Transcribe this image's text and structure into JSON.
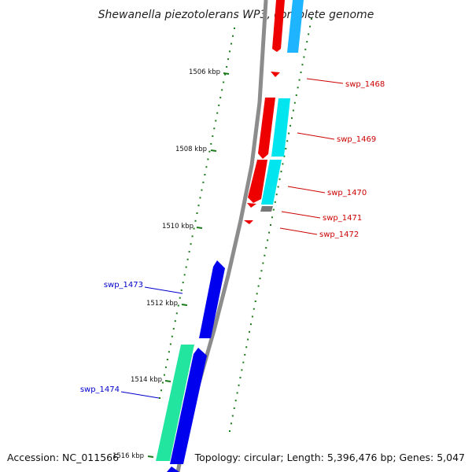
{
  "title": "Shewanella piezotolerans WP3, complete genome",
  "footer": {
    "accession": "Accession: NC_011566",
    "topology": "Topology: circular; Length: 5,396,476 bp; Genes: 5,047"
  },
  "colors": {
    "backbone": "#8c8c8c",
    "tick": "#1a7a1a",
    "label_forward": "#cc0000",
    "label_reverse": "#0000cc",
    "red": "#ee0000",
    "cyan": "#00e5ee",
    "sky": "#1eb4ff",
    "blue": "#0000ee",
    "green": "#22e6a0",
    "gray": "#777777"
  },
  "scale": {
    "tick_labels": [
      "1506 kbp",
      "1508 kbp",
      "1510 kbp",
      "1512 kbp",
      "1514 kbp",
      "1516 kbp"
    ]
  },
  "genes": {
    "labeled": [
      {
        "label": "swp_1468",
        "strand": "forward"
      },
      {
        "label": "swp_1469",
        "strand": "forward"
      },
      {
        "label": "swp_1470",
        "strand": "forward"
      },
      {
        "label": "swp_1471",
        "strand": "forward"
      },
      {
        "label": "swp_1472",
        "strand": "forward"
      },
      {
        "label": "swp_1473",
        "strand": "reverse"
      },
      {
        "label": "swp_1474",
        "strand": "reverse"
      }
    ]
  }
}
